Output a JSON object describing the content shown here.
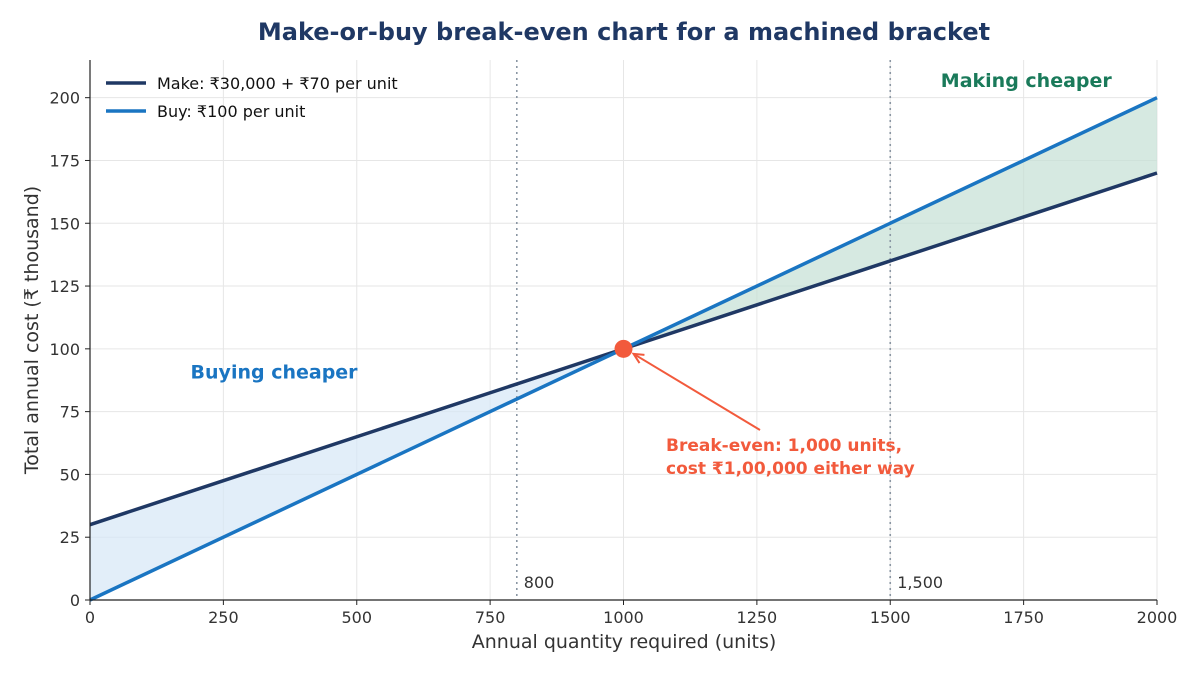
{
  "chart_data": {
    "type": "line",
    "title": "Make-or-buy break-even chart for a machined bracket",
    "xlabel": "Annual quantity required (units)",
    "ylabel": "Total annual cost (₹ thousand)",
    "xlim": [
      0,
      2000
    ],
    "ylim": [
      0,
      215
    ],
    "x_ticks": [
      0,
      250,
      500,
      750,
      1000,
      1250,
      1500,
      1750,
      2000
    ],
    "y_ticks": [
      0,
      25,
      50,
      75,
      100,
      125,
      150,
      175,
      200
    ],
    "grid": true,
    "legend_position": "top-left",
    "series": [
      {
        "name": "Make: ₹30,000 + ₹70 per unit",
        "x": [
          0,
          2000
        ],
        "y": [
          30,
          170
        ],
        "color": "#1f3864"
      },
      {
        "name": "Buy: ₹100 per unit",
        "x": [
          0,
          2000
        ],
        "y": [
          0,
          200
        ],
        "color": "#1a75c2"
      }
    ],
    "regions": [
      {
        "label": "Buying cheaper",
        "x_range": [
          0,
          1000
        ],
        "fill": "#d6e7f6",
        "label_color": "#1a75c2",
        "label_at": [
          345,
          91
        ]
      },
      {
        "label": "Making cheaper",
        "x_range": [
          1000,
          2000
        ],
        "fill": "#c5dfd4",
        "label_color": "#1a7a5a",
        "label_at": [
          1755,
          207
        ]
      }
    ],
    "reference_lines": [
      {
        "x": 800,
        "label": "800"
      },
      {
        "x": 1500,
        "label": "1,500"
      }
    ],
    "break_even": {
      "x": 1000,
      "y": 100,
      "color": "#f25a3c",
      "label_line1": "Break-even: 1,000 units,",
      "label_line2": "cost ₹1,00,000 either way"
    }
  }
}
